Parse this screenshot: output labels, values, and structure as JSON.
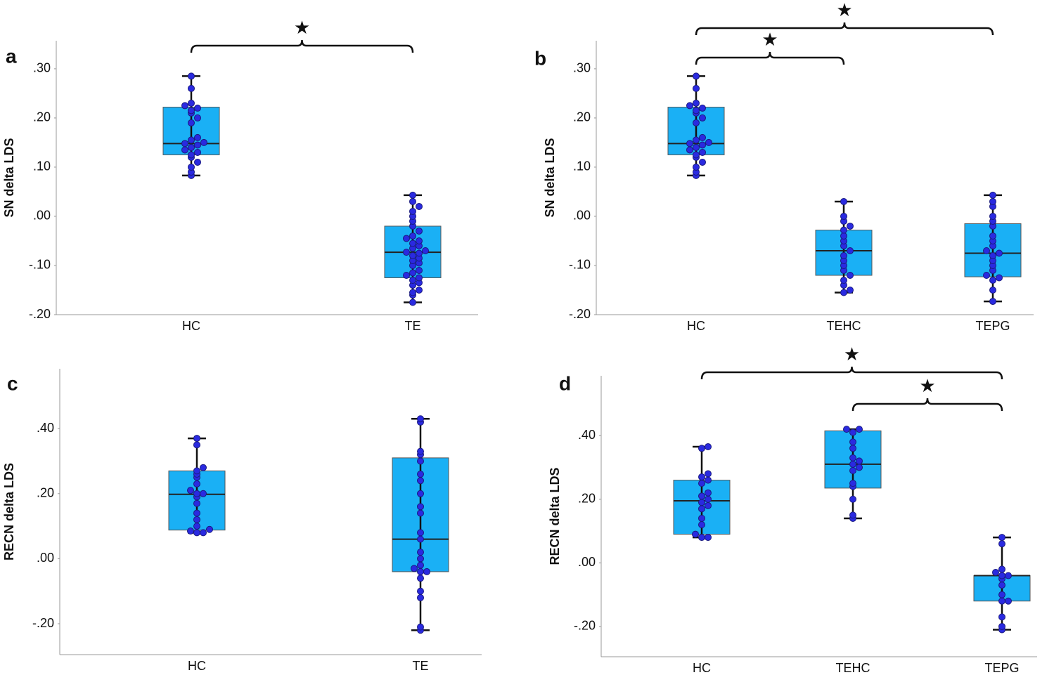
{
  "chart_data": [
    {
      "type": "box",
      "panel_label": "a",
      "y_label": "SN delta LDS",
      "categories": [
        "HC",
        "TE"
      ],
      "groups": [
        {
          "whisker_low": 0.083,
          "q1": 0.125,
          "median": 0.148,
          "q3": 0.222,
          "whisker_high": 0.285,
          "points": [
            0.083,
            0.09,
            0.1,
            0.11,
            0.12,
            0.125,
            0.13,
            0.135,
            0.14,
            0.145,
            0.148,
            0.15,
            0.155,
            0.16,
            0.19,
            0.2,
            0.21,
            0.215,
            0.22,
            0.225,
            0.23,
            0.26,
            0.285
          ]
        },
        {
          "whisker_low": -0.175,
          "q1": -0.125,
          "median": -0.073,
          "q3": -0.02,
          "whisker_high": 0.043,
          "points": [
            -0.175,
            -0.16,
            -0.155,
            -0.15,
            -0.14,
            -0.135,
            -0.13,
            -0.125,
            -0.12,
            -0.115,
            -0.11,
            -0.1,
            -0.095,
            -0.09,
            -0.085,
            -0.08,
            -0.075,
            -0.073,
            -0.07,
            -0.065,
            -0.06,
            -0.055,
            -0.05,
            -0.045,
            -0.04,
            -0.03,
            -0.02,
            -0.01,
            0,
            0.01,
            0.02,
            0.03,
            0.043
          ]
        }
      ],
      "ylim": [
        -0.2,
        0.357
      ],
      "yticks": [
        {
          "value": -0.2,
          "label": "-.20"
        },
        {
          "value": -0.1,
          "label": "-.10"
        },
        {
          "value": 0,
          "label": ".00"
        },
        {
          "value": 0.1,
          "label": ".10"
        },
        {
          "value": 0.2,
          "label": ".20"
        },
        {
          "value": 0.3,
          "label": ".30"
        }
      ],
      "box_color": "#1ab0f5",
      "point_color": "#2a2ae0",
      "brackets": [
        {
          "groups": [
            "HC",
            "TE"
          ],
          "label": "★"
        }
      ]
    },
    {
      "type": "box",
      "panel_label": "b",
      "y_label": "SN delta LDS",
      "categories": [
        "HC",
        "TEHC",
        "TEPG"
      ],
      "groups": [
        {
          "whisker_low": 0.083,
          "q1": 0.125,
          "median": 0.148,
          "q3": 0.222,
          "whisker_high": 0.285,
          "points": [
            0.083,
            0.09,
            0.1,
            0.11,
            0.12,
            0.125,
            0.13,
            0.135,
            0.14,
            0.145,
            0.148,
            0.15,
            0.155,
            0.16,
            0.19,
            0.2,
            0.21,
            0.215,
            0.22,
            0.225,
            0.23,
            0.26,
            0.285
          ]
        },
        {
          "whisker_low": -0.155,
          "q1": -0.12,
          "median": -0.07,
          "q3": -0.028,
          "whisker_high": 0.03,
          "points": [
            -0.155,
            -0.15,
            -0.14,
            -0.13,
            -0.12,
            -0.11,
            -0.1,
            -0.09,
            -0.08,
            -0.07,
            -0.06,
            -0.05,
            -0.04,
            -0.028,
            -0.02,
            -0.01,
            0,
            0.03
          ]
        },
        {
          "whisker_low": -0.173,
          "q1": -0.123,
          "median": -0.075,
          "q3": -0.015,
          "whisker_high": 0.043,
          "points": [
            -0.173,
            -0.15,
            -0.13,
            -0.125,
            -0.12,
            -0.11,
            -0.1,
            -0.09,
            -0.08,
            -0.075,
            -0.07,
            -0.06,
            -0.05,
            -0.04,
            -0.02,
            -0.01,
            0,
            0.02,
            0.03,
            0.043
          ]
        }
      ],
      "ylim": [
        -0.2,
        0.357
      ],
      "yticks": [
        {
          "value": -0.2,
          "label": "-.20"
        },
        {
          "value": -0.1,
          "label": "-.10"
        },
        {
          "value": 0,
          "label": ".00"
        },
        {
          "value": 0.1,
          "label": ".10"
        },
        {
          "value": 0.2,
          "label": ".20"
        },
        {
          "value": 0.3,
          "label": ".30"
        }
      ],
      "box_color": "#1ab0f5",
      "point_color": "#2a2ae0",
      "brackets": [
        {
          "groups": [
            "HC",
            "TEHC"
          ],
          "label": "★"
        },
        {
          "groups": [
            "HC",
            "TEPG"
          ],
          "label": "★"
        }
      ]
    },
    {
      "type": "box",
      "panel_label": "c",
      "y_label": "RECN delta LDS",
      "categories": [
        "HC",
        "TE"
      ],
      "groups": [
        {
          "whisker_low": 0.08,
          "q1": 0.088,
          "median": 0.198,
          "q3": 0.27,
          "whisker_high": 0.37,
          "points": [
            0.08,
            0.08,
            0.085,
            0.09,
            0.1,
            0.12,
            0.14,
            0.17,
            0.19,
            0.2,
            0.2,
            0.21,
            0.23,
            0.25,
            0.26,
            0.27,
            0.28,
            0.35,
            0.37
          ]
        },
        {
          "whisker_low": -0.22,
          "q1": -0.04,
          "median": 0.06,
          "q3": 0.31,
          "whisker_high": 0.43,
          "points": [
            -0.22,
            -0.21,
            -0.12,
            -0.1,
            -0.06,
            -0.04,
            -0.04,
            -0.03,
            -0.02,
            0,
            0.02,
            0.08,
            0.06,
            0.14,
            0.16,
            0.2,
            0.24,
            0.26,
            0.3,
            0.32,
            0.33,
            0.42,
            0.43
          ]
        }
      ],
      "ylim": [
        -0.295,
        0.584
      ],
      "yticks": [
        {
          "value": -0.2,
          "label": "-.20"
        },
        {
          "value": 0,
          "label": ".00"
        },
        {
          "value": 0.2,
          "label": ".20"
        },
        {
          "value": 0.4,
          "label": ".40"
        }
      ],
      "box_color": "#1ab0f5",
      "point_color": "#2a2ae0",
      "brackets": []
    },
    {
      "type": "box",
      "panel_label": "d",
      "y_label": "RECN delta LDS",
      "categories": [
        "HC",
        "TEHC",
        "TEPG"
      ],
      "groups": [
        {
          "whisker_low": 0.08,
          "q1": 0.09,
          "median": 0.195,
          "q3": 0.26,
          "whisker_high": 0.365,
          "points": [
            0.08,
            0.08,
            0.09,
            0.12,
            0.14,
            0.17,
            0.18,
            0.19,
            0.2,
            0.21,
            0.22,
            0.25,
            0.26,
            0.27,
            0.28,
            0.36,
            0.365
          ]
        },
        {
          "whisker_low": 0.14,
          "q1": 0.235,
          "median": 0.31,
          "q3": 0.415,
          "whisker_high": 0.42,
          "points": [
            0.14,
            0.15,
            0.2,
            0.24,
            0.25,
            0.29,
            0.3,
            0.31,
            0.32,
            0.33,
            0.36,
            0.38,
            0.41,
            0.42,
            0.42
          ]
        },
        {
          "whisker_low": -0.21,
          "q1": -0.12,
          "median": -0.04,
          "q3": -0.04,
          "whisker_high": 0.08,
          "points": [
            -0.21,
            -0.2,
            -0.17,
            -0.12,
            -0.12,
            -0.1,
            -0.07,
            -0.05,
            -0.04,
            -0.04,
            -0.03,
            -0.02,
            0.06,
            0.08
          ]
        }
      ],
      "ylim": [
        -0.295,
        0.588
      ],
      "yticks": [
        {
          "value": -0.2,
          "label": "-.20"
        },
        {
          "value": 0,
          "label": ".00"
        },
        {
          "value": 0.2,
          "label": ".20"
        },
        {
          "value": 0.4,
          "label": ".40"
        }
      ],
      "box_color": "#1ab0f5",
      "point_color": "#2a2ae0",
      "brackets": [
        {
          "groups": [
            "TEHC",
            "TEPG"
          ],
          "label": "★"
        },
        {
          "groups": [
            "HC",
            "TEPG"
          ],
          "label": "★"
        }
      ]
    }
  ]
}
